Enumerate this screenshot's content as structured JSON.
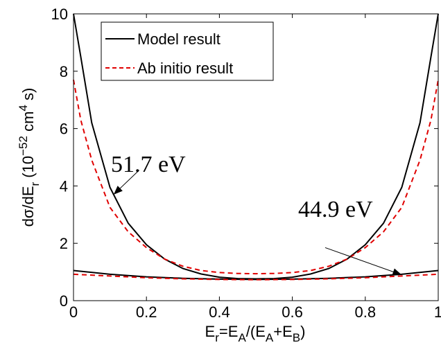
{
  "chart_data": {
    "type": "line",
    "xlabel": {
      "main": "E",
      "sub1": "r",
      "mid": "=E",
      "sub2": "A",
      "mid2": "/(E",
      "sub3": "A",
      "mid3": "+E",
      "sub4": "B",
      "end": ")"
    },
    "ylabel": {
      "main": "dσ/dE",
      "sub": "r",
      "mid": " (10",
      "sup1": "−52",
      "mid2": " cm",
      "sup2": "4",
      "end": " s)"
    },
    "xlim": [
      0,
      1
    ],
    "ylim": [
      0,
      10
    ],
    "xticks": [
      "0",
      "0.2",
      "0.4",
      "0.6",
      "0.8",
      "1"
    ],
    "yticks": [
      "0",
      "2",
      "4",
      "6",
      "8",
      "10"
    ],
    "xtick_values": [
      0,
      0.2,
      0.4,
      0.6,
      0.8,
      1
    ],
    "ytick_values": [
      0,
      2,
      4,
      6,
      8,
      10
    ],
    "grid": false,
    "legend_position": "top-left",
    "series": [
      {
        "name": "Model result",
        "color": "#000000",
        "dash": "solid",
        "group": "51.7 eV",
        "x": [
          0,
          0.02,
          0.05,
          0.1,
          0.15,
          0.2,
          0.25,
          0.3,
          0.35,
          0.4,
          0.45,
          0.5,
          0.55,
          0.6,
          0.65,
          0.7,
          0.75,
          0.8,
          0.85,
          0.9,
          0.95,
          0.98,
          1
        ],
        "y": [
          10.0,
          8.5,
          6.2,
          3.95,
          2.7,
          1.95,
          1.45,
          1.12,
          0.93,
          0.82,
          0.77,
          0.76,
          0.77,
          0.82,
          0.93,
          1.12,
          1.45,
          1.95,
          2.7,
          3.95,
          6.2,
          8.5,
          10.0
        ]
      },
      {
        "name": "Ab initio result",
        "color": "#e00000",
        "dash": "dashed",
        "group": "51.7 eV",
        "x": [
          0,
          0.02,
          0.05,
          0.1,
          0.15,
          0.2,
          0.25,
          0.3,
          0.35,
          0.4,
          0.45,
          0.5,
          0.55,
          0.6,
          0.65,
          0.7,
          0.75,
          0.8,
          0.85,
          0.9,
          0.95,
          0.98,
          1
        ],
        "y": [
          7.7,
          6.3,
          4.9,
          3.25,
          2.4,
          1.85,
          1.45,
          1.2,
          1.05,
          0.98,
          0.95,
          0.94,
          0.95,
          0.98,
          1.05,
          1.2,
          1.45,
          1.85,
          2.4,
          3.25,
          4.9,
          6.3,
          7.7
        ]
      },
      {
        "name": "",
        "color": "#000000",
        "dash": "solid",
        "group": "44.9 eV",
        "x": [
          0,
          0.1,
          0.2,
          0.3,
          0.4,
          0.5,
          0.6,
          0.7,
          0.8,
          0.9,
          1
        ],
        "y": [
          1.05,
          0.92,
          0.83,
          0.78,
          0.75,
          0.74,
          0.75,
          0.78,
          0.83,
          0.92,
          1.05
        ]
      },
      {
        "name": "",
        "color": "#e00000",
        "dash": "dashed",
        "group": "44.9 eV",
        "x": [
          0,
          0.1,
          0.2,
          0.3,
          0.4,
          0.5,
          0.6,
          0.7,
          0.8,
          0.9,
          1
        ],
        "y": [
          0.92,
          0.86,
          0.8,
          0.76,
          0.74,
          0.73,
          0.74,
          0.76,
          0.8,
          0.86,
          0.92
        ]
      }
    ],
    "legend": [
      {
        "label": "Model result",
        "color": "#000000",
        "dash": "solid"
      },
      {
        "label": "Ab initio result",
        "color": "#e00000",
        "dash": "dashed"
      }
    ],
    "annotations": [
      {
        "text": "51.7 eV",
        "arrow_to": [
          0.11,
          3.7
        ],
        "arrow_from": [
          0.18,
          4.55
        ]
      },
      {
        "text": "44.9 eV",
        "arrow_to": [
          0.9,
          0.9
        ],
        "arrow_from": [
          0.69,
          1.85
        ]
      }
    ]
  }
}
